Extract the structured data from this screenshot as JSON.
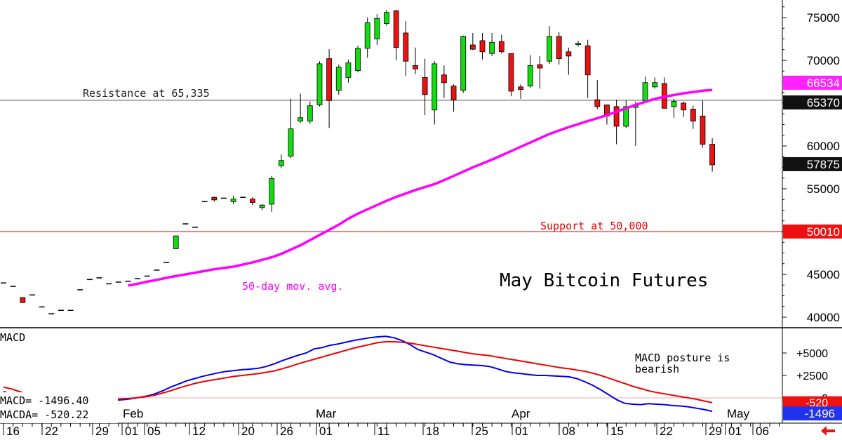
{
  "chart_data": [
    {
      "type": "candlestick",
      "title": "May Bitcoin Futures",
      "ylim": [
        38500,
        77500
      ],
      "y_ticks": [
        40000,
        45000,
        50000,
        55000,
        60000,
        65000,
        70000,
        75000
      ],
      "x_tick_labels": [
        "16",
        "22",
        "29",
        "01",
        "05",
        "12",
        "20",
        "26",
        "01",
        "11",
        "18",
        "25",
        "01",
        "08",
        "15",
        "22",
        "29",
        "01",
        "06"
      ],
      "month_labels": [
        "Feb",
        "Mar",
        "Apr",
        "May"
      ],
      "resistance": {
        "label": "Resistance at 65,335",
        "value": 65335,
        "badge": "65370"
      },
      "support": {
        "label": "Support at 50,000",
        "value": 50000,
        "badge": "50010"
      },
      "last_price_badge": "57875",
      "ma": {
        "label": "50-day mov. avg.",
        "badge": "66534",
        "color": "#ff00ff",
        "values": [
          43700,
          43900,
          44150,
          44350,
          44600,
          44800,
          45000,
          45200,
          45400,
          45600,
          45750,
          45900,
          46150,
          46400,
          46700,
          47000,
          47400,
          47900,
          48400,
          49000,
          49600,
          50200,
          50800,
          51500,
          52100,
          52600,
          53100,
          53600,
          54050,
          54450,
          54850,
          55200,
          55550,
          56000,
          56500,
          57000,
          57500,
          57950,
          58400,
          58900,
          59400,
          59900,
          60400,
          60900,
          61400,
          61800,
          62200,
          62550,
          62900,
          63250,
          63600,
          64000,
          64400,
          64800,
          65150,
          65500,
          65750,
          65950,
          66150,
          66300,
          66450,
          66534
        ]
      },
      "candles": [
        {
          "o": 44000,
          "h": 44000,
          "l": 44000,
          "c": 44000
        },
        {
          "o": 43600,
          "h": 43600,
          "l": 43600,
          "c": 43600
        },
        {
          "o": 42300,
          "h": 42300,
          "l": 41700,
          "c": 41700
        },
        {
          "o": 42600,
          "h": 42600,
          "l": 42600,
          "c": 42600
        },
        {
          "o": 41200,
          "h": 41200,
          "l": 41200,
          "c": 41200
        },
        {
          "o": 40400,
          "h": 40400,
          "l": 40400,
          "c": 40400
        },
        {
          "o": 40800,
          "h": 40800,
          "l": 40800,
          "c": 40800
        },
        {
          "o": 40800,
          "h": 40800,
          "l": 40800,
          "c": 40800
        },
        {
          "o": 43200,
          "h": 43200,
          "l": 43200,
          "c": 43200
        },
        {
          "o": 44400,
          "h": 44400,
          "l": 44400,
          "c": 44400
        },
        {
          "o": 44600,
          "h": 44600,
          "l": 44600,
          "c": 44600
        },
        {
          "o": 43900,
          "h": 43900,
          "l": 43900,
          "c": 43900
        },
        {
          "o": 44100,
          "h": 44100,
          "l": 44100,
          "c": 44100
        },
        {
          "o": 44200,
          "h": 44200,
          "l": 44200,
          "c": 44200
        },
        {
          "o": 44500,
          "h": 44500,
          "l": 44500,
          "c": 44500
        },
        {
          "o": 44800,
          "h": 44800,
          "l": 44800,
          "c": 44800
        },
        {
          "o": 45500,
          "h": 45500,
          "l": 45500,
          "c": 45500
        },
        {
          "o": 46400,
          "h": 46400,
          "l": 46400,
          "c": 46400
        },
        {
          "o": 48000,
          "h": 49500,
          "l": 48000,
          "c": 49500
        },
        {
          "o": 50900,
          "h": 50900,
          "l": 50900,
          "c": 50900
        },
        {
          "o": 50500,
          "h": 50500,
          "l": 50500,
          "c": 50500
        },
        {
          "o": 53500,
          "h": 53500,
          "l": 53500,
          "c": 53500
        },
        {
          "o": 54000,
          "h": 54100,
          "l": 53500,
          "c": 53700
        },
        {
          "o": 53900,
          "h": 53900,
          "l": 53900,
          "c": 53900
        },
        {
          "o": 53500,
          "h": 54200,
          "l": 53200,
          "c": 53800
        },
        {
          "o": 54000,
          "h": 54000,
          "l": 54000,
          "c": 54000
        },
        {
          "o": 53800,
          "h": 54000,
          "l": 53100,
          "c": 53400
        },
        {
          "o": 52800,
          "h": 53200,
          "l": 52500,
          "c": 53100
        },
        {
          "o": 53200,
          "h": 56500,
          "l": 52300,
          "c": 56200
        },
        {
          "o": 57700,
          "h": 59000,
          "l": 57400,
          "c": 58300
        },
        {
          "o": 58800,
          "h": 65500,
          "l": 58600,
          "c": 62000
        },
        {
          "o": 62900,
          "h": 66100,
          "l": 62700,
          "c": 63300
        },
        {
          "o": 62900,
          "h": 65200,
          "l": 62600,
          "c": 64700
        },
        {
          "o": 64800,
          "h": 69900,
          "l": 64600,
          "c": 69600
        },
        {
          "o": 70200,
          "h": 71300,
          "l": 62100,
          "c": 65300
        },
        {
          "o": 66500,
          "h": 69500,
          "l": 66000,
          "c": 69200
        },
        {
          "o": 68000,
          "h": 70100,
          "l": 67400,
          "c": 69700
        },
        {
          "o": 68800,
          "h": 71700,
          "l": 68600,
          "c": 71400
        },
        {
          "o": 71400,
          "h": 75000,
          "l": 70300,
          "c": 74400
        },
        {
          "o": 72500,
          "h": 75400,
          "l": 71800,
          "c": 74900
        },
        {
          "o": 74300,
          "h": 75900,
          "l": 74000,
          "c": 75600
        },
        {
          "o": 75800,
          "h": 75900,
          "l": 70000,
          "c": 71500
        },
        {
          "o": 73200,
          "h": 74600,
          "l": 68200,
          "c": 69900
        },
        {
          "o": 69400,
          "h": 71500,
          "l": 68400,
          "c": 69000
        },
        {
          "o": 68000,
          "h": 70200,
          "l": 63600,
          "c": 66000
        },
        {
          "o": 64200,
          "h": 69900,
          "l": 62500,
          "c": 69600
        },
        {
          "o": 68300,
          "h": 69400,
          "l": 65600,
          "c": 67400
        },
        {
          "o": 67000,
          "h": 67200,
          "l": 64000,
          "c": 65400
        },
        {
          "o": 66500,
          "h": 72900,
          "l": 66200,
          "c": 72800
        },
        {
          "o": 71800,
          "h": 73200,
          "l": 71200,
          "c": 71300
        },
        {
          "o": 72300,
          "h": 73200,
          "l": 70100,
          "c": 71000
        },
        {
          "o": 70800,
          "h": 73200,
          "l": 70500,
          "c": 72100
        },
        {
          "o": 72200,
          "h": 73000,
          "l": 70800,
          "c": 71000
        },
        {
          "o": 70800,
          "h": 70800,
          "l": 65800,
          "c": 66400
        },
        {
          "o": 66900,
          "h": 67200,
          "l": 65500,
          "c": 66600
        },
        {
          "o": 67000,
          "h": 70600,
          "l": 66800,
          "c": 69400
        },
        {
          "o": 69500,
          "h": 70500,
          "l": 66700,
          "c": 69100
        },
        {
          "o": 69900,
          "h": 74000,
          "l": 69600,
          "c": 72800
        },
        {
          "o": 72800,
          "h": 73300,
          "l": 69500,
          "c": 70200
        },
        {
          "o": 71000,
          "h": 71500,
          "l": 68300,
          "c": 70500
        },
        {
          "o": 72000,
          "h": 72300,
          "l": 71600,
          "c": 72000
        },
        {
          "o": 71700,
          "h": 72400,
          "l": 65600,
          "c": 68300
        },
        {
          "o": 65400,
          "h": 67700,
          "l": 64300,
          "c": 64600
        },
        {
          "o": 64800,
          "h": 64800,
          "l": 62500,
          "c": 63500
        },
        {
          "o": 64600,
          "h": 65400,
          "l": 60200,
          "c": 62300
        },
        {
          "o": 62300,
          "h": 65300,
          "l": 62100,
          "c": 64600
        },
        {
          "o": 64500,
          "h": 65200,
          "l": 60000,
          "c": 64700
        },
        {
          "o": 65300,
          "h": 68100,
          "l": 65100,
          "c": 67400
        },
        {
          "o": 66900,
          "h": 68000,
          "l": 66700,
          "c": 67400
        },
        {
          "o": 67300,
          "h": 68000,
          "l": 64500,
          "c": 64400
        },
        {
          "o": 64600,
          "h": 65500,
          "l": 63300,
          "c": 65200
        },
        {
          "o": 65000,
          "h": 65200,
          "l": 63400,
          "c": 64200
        },
        {
          "o": 64300,
          "h": 64700,
          "l": 62000,
          "c": 62900
        },
        {
          "o": 63500,
          "h": 65300,
          "l": 59800,
          "c": 60200
        },
        {
          "o": 60200,
          "h": 60900,
          "l": 57000,
          "c": 57800
        }
      ]
    },
    {
      "type": "line",
      "title": "MACD",
      "annotation": "MACD posture is bearish",
      "y_tick_labels": [
        "+5000",
        "+2500",
        "0",
        "-520",
        "-1496"
      ],
      "readout": {
        "macd": "MACD= -1496.40",
        "macda": "MACDA= -520.22"
      },
      "series": [
        {
          "name": "MACD",
          "color": "#0000ee",
          "values": [
            700,
            400,
            150,
            -50,
            -250,
            -350,
            -400,
            -450,
            -500,
            -500,
            -450,
            -400,
            -350,
            -300,
            -250,
            -200,
            -100,
            50,
            200,
            450,
            800,
            1200,
            1550,
            1900,
            2150,
            2400,
            2600,
            2800,
            2950,
            3050,
            3150,
            3200,
            3300,
            3500,
            3800,
            4150,
            4450,
            4750,
            5000,
            5450,
            5600,
            5850,
            6000,
            6200,
            6400,
            6550,
            6700,
            6800,
            6850,
            6700,
            6400,
            5950,
            5400,
            5100,
            4800,
            4400,
            4000,
            3800,
            3700,
            3650,
            3600,
            3500,
            3250,
            2950,
            2800,
            2700,
            2600,
            2500,
            2500,
            2450,
            2400,
            2350,
            2150,
            1800,
            1400,
            900,
            350,
            -200,
            -600,
            -700,
            -750,
            -650,
            -700,
            -750,
            -850,
            -900,
            -1000,
            -1150,
            -1300,
            -1496
          ]
        },
        {
          "name": "MACDA",
          "color": "#ee0000",
          "values": [
            1200,
            1000,
            700,
            400,
            200,
            50,
            -50,
            -150,
            -250,
            -300,
            -300,
            -300,
            -250,
            -200,
            -150,
            -100,
            -50,
            50,
            150,
            300,
            550,
            800,
            1100,
            1350,
            1600,
            1800,
            1950,
            2100,
            2250,
            2400,
            2500,
            2600,
            2700,
            2850,
            3000,
            3250,
            3500,
            3800,
            4050,
            4300,
            4550,
            4800,
            5050,
            5300,
            5550,
            5750,
            5950,
            6150,
            6250,
            6250,
            6200,
            6100,
            5950,
            5800,
            5650,
            5500,
            5350,
            5200,
            5050,
            4900,
            4800,
            4700,
            4550,
            4400,
            4250,
            4100,
            3950,
            3800,
            3650,
            3500,
            3350,
            3250,
            3100,
            2950,
            2750,
            2500,
            2200,
            1900,
            1600,
            1300,
            1050,
            800,
            600,
            450,
            300,
            150,
            0,
            -150,
            -350,
            -520
          ]
        }
      ]
    }
  ]
}
